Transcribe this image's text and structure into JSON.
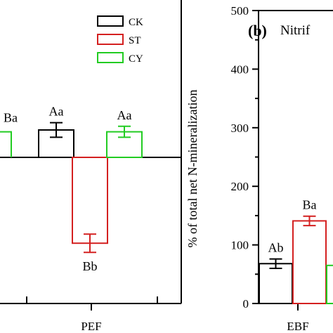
{
  "chart_data": [
    {
      "panel": "left",
      "type": "bar",
      "categories": [
        "PEF"
      ],
      "series": [
        {
          "name": "CK",
          "color": "#000000",
          "values": [
            15
          ],
          "errors": [
            4
          ],
          "labels": [
            "Aa"
          ]
        },
        {
          "name": "ST",
          "color": "#d42020",
          "values": [
            -47
          ],
          "errors": [
            5
          ],
          "labels": [
            "Bb"
          ]
        },
        {
          "name": "CY",
          "color": "#22cc22",
          "values": [
            14
          ],
          "errors": [
            3
          ],
          "labels": [
            "Aa"
          ]
        }
      ],
      "partial_series": {
        "color": "#22cc22",
        "value": 14,
        "label": "Ba"
      },
      "baseline": 0,
      "ylim": [
        -58,
        50
      ],
      "legend": [
        "CK",
        "ST",
        "CY"
      ],
      "legend_position": "top-right",
      "grid": false
    },
    {
      "panel": "right",
      "type": "bar",
      "panel_label": "(b)",
      "title": "Nitrif",
      "ylabel": "% of total net N-mineralization",
      "yticks": [
        0,
        100,
        200,
        300,
        400,
        500
      ],
      "ylim": [
        0,
        500
      ],
      "categories": [
        "EBF"
      ],
      "series": [
        {
          "name": "CK",
          "color": "#000000",
          "values": [
            68
          ],
          "errors": [
            8
          ],
          "labels": [
            "Ab"
          ]
        },
        {
          "name": "ST",
          "color": "#d42020",
          "values": [
            141
          ],
          "errors": [
            8
          ],
          "labels": [
            "Ba"
          ]
        },
        {
          "name": "CY",
          "color": "#22cc22",
          "values": [
            65
          ],
          "errors": [
            0
          ],
          "labels": [
            ""
          ]
        }
      ],
      "grid": false
    }
  ]
}
